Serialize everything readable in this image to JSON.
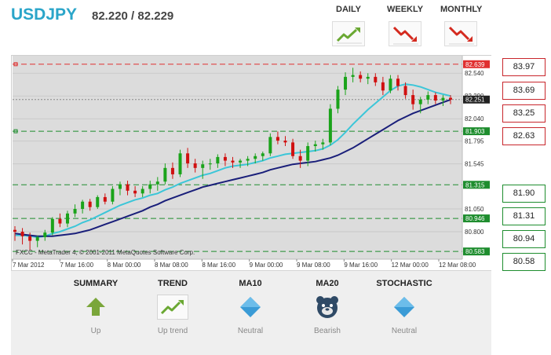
{
  "header": {
    "symbol": "USDJPY",
    "quote": "82.220 / 82.229",
    "timeframes": [
      {
        "label": "DAILY",
        "trend_icon": "trend-up-icon",
        "color": "#6aa832"
      },
      {
        "label": "WEEKLY",
        "trend_icon": "trend-down-icon",
        "color": "#d42a1f"
      },
      {
        "label": "MONTHLY",
        "trend_icon": "trend-down-icon",
        "color": "#d42a1f"
      }
    ]
  },
  "chart": {
    "watermark": "FXCC - MetaTrader 4, © 2001-2011 MetaQuotes Software Corp.",
    "x_labels": [
      "7 Mar 2012",
      "7 Mar 16:00",
      "8 Mar 00:00",
      "8 Mar 08:00",
      "8 Mar 16:00",
      "9 Mar 00:00",
      "9 Mar 08:00",
      "9 Mar 16:00",
      "12 Mar 00:00",
      "12 Mar 08:00"
    ],
    "y_ticks": [
      "82.540",
      "82.290",
      "82.040",
      "81.795",
      "81.545",
      "81.050",
      "80.800"
    ],
    "price_tags": [
      {
        "text": "82.639",
        "kind": "red-line",
        "color": "#e03030"
      },
      {
        "text": "82.251",
        "kind": "current",
        "color": "#222222"
      },
      {
        "text": "81.903",
        "kind": "green-line",
        "color": "#1e8d2e"
      },
      {
        "text": "81.315",
        "kind": "green-line",
        "color": "#1e8d2e"
      },
      {
        "text": "80.946",
        "kind": "green-line",
        "color": "#1e8d2e"
      },
      {
        "text": "80.583",
        "kind": "green-line",
        "color": "#1e8d2e"
      }
    ]
  },
  "chart_data": {
    "type": "line",
    "y_range": [
      80.55,
      82.68
    ],
    "candles": [
      [
        80.82,
        80.86,
        80.7,
        80.8
      ],
      [
        80.8,
        80.84,
        80.66,
        80.75
      ],
      [
        80.75,
        80.79,
        80.6,
        80.7
      ],
      [
        80.7,
        80.76,
        80.63,
        80.74
      ],
      [
        80.74,
        80.82,
        80.7,
        80.79
      ],
      [
        80.79,
        80.96,
        80.76,
        80.94
      ],
      [
        80.94,
        81.0,
        80.85,
        80.89
      ],
      [
        80.89,
        81.03,
        80.85,
        81.0
      ],
      [
        81.0,
        81.1,
        80.96,
        81.05
      ],
      [
        81.05,
        81.15,
        81.0,
        81.13
      ],
      [
        81.13,
        81.16,
        81.03,
        81.07
      ],
      [
        81.07,
        81.2,
        81.05,
        81.18
      ],
      [
        81.18,
        81.22,
        81.1,
        81.13
      ],
      [
        81.13,
        81.3,
        81.1,
        81.27
      ],
      [
        81.27,
        81.35,
        81.2,
        81.32
      ],
      [
        81.32,
        81.36,
        81.2,
        81.25
      ],
      [
        81.25,
        81.3,
        81.18,
        81.22
      ],
      [
        81.22,
        81.3,
        81.18,
        81.27
      ],
      [
        81.27,
        81.36,
        81.22,
        81.32
      ],
      [
        81.32,
        81.4,
        81.25,
        81.35
      ],
      [
        81.35,
        81.55,
        81.32,
        81.5
      ],
      [
        81.5,
        81.56,
        81.38,
        81.43
      ],
      [
        81.43,
        81.7,
        81.4,
        81.66
      ],
      [
        81.66,
        81.72,
        81.5,
        81.55
      ],
      [
        81.55,
        81.6,
        81.45,
        81.5
      ],
      [
        81.5,
        81.58,
        81.38,
        81.54
      ],
      [
        81.54,
        81.6,
        81.48,
        81.55
      ],
      [
        81.55,
        81.65,
        81.5,
        81.62
      ],
      [
        81.62,
        81.66,
        81.52,
        81.58
      ],
      [
        81.58,
        81.62,
        81.5,
        81.56
      ],
      [
        81.56,
        81.6,
        81.5,
        81.58
      ],
      [
        81.58,
        81.63,
        81.52,
        81.6
      ],
      [
        81.6,
        81.66,
        81.55,
        81.63
      ],
      [
        81.63,
        81.68,
        81.58,
        81.66
      ],
      [
        81.66,
        81.88,
        81.63,
        81.84
      ],
      [
        81.84,
        81.9,
        81.76,
        81.8
      ],
      [
        81.8,
        81.85,
        81.74,
        81.78
      ],
      [
        81.78,
        81.82,
        81.6,
        81.63
      ],
      [
        81.63,
        81.7,
        81.5,
        81.58
      ],
      [
        81.58,
        81.78,
        81.52,
        81.74
      ],
      [
        81.74,
        81.8,
        81.68,
        81.76
      ],
      [
        81.76,
        81.82,
        81.7,
        81.78
      ],
      [
        81.78,
        82.2,
        81.75,
        82.15
      ],
      [
        82.15,
        82.4,
        82.1,
        82.36
      ],
      [
        82.36,
        82.55,
        82.3,
        82.5
      ],
      [
        82.5,
        82.6,
        82.44,
        82.52
      ],
      [
        82.52,
        82.56,
        82.44,
        82.48
      ],
      [
        82.48,
        82.54,
        82.42,
        82.5
      ],
      [
        82.5,
        82.54,
        82.4,
        82.44
      ],
      [
        82.44,
        82.5,
        82.3,
        82.35
      ],
      [
        82.35,
        82.52,
        82.32,
        82.48
      ],
      [
        82.48,
        82.52,
        82.35,
        82.4
      ],
      [
        82.4,
        82.44,
        82.26,
        82.3
      ],
      [
        82.3,
        82.36,
        82.14,
        82.2
      ],
      [
        82.2,
        82.28,
        82.1,
        82.25
      ],
      [
        82.25,
        82.34,
        82.2,
        82.3
      ],
      [
        82.3,
        82.33,
        82.2,
        82.24
      ],
      [
        82.24,
        82.3,
        82.18,
        82.27
      ],
      [
        82.27,
        82.3,
        82.2,
        82.25
      ]
    ],
    "series": [
      {
        "name": "MA10",
        "color": "#3cc6d8",
        "values": [
          80.76,
          80.76,
          80.75,
          80.74,
          80.75,
          80.78,
          80.8,
          80.83,
          80.86,
          80.9,
          80.93,
          80.97,
          81.01,
          81.05,
          81.09,
          81.12,
          81.15,
          81.17,
          81.2,
          81.22,
          81.26,
          81.29,
          81.33,
          81.36,
          81.39,
          81.42,
          81.44,
          81.47,
          81.5,
          81.52,
          81.53,
          81.54,
          81.56,
          81.58,
          81.61,
          81.63,
          81.65,
          81.66,
          81.67,
          81.68,
          81.69,
          81.71,
          81.75,
          81.81,
          81.89,
          81.98,
          82.06,
          82.14,
          82.21,
          82.28,
          82.35,
          82.4,
          82.42,
          82.41,
          82.39,
          82.36,
          82.33,
          82.31,
          82.29
        ]
      },
      {
        "name": "MA20",
        "color": "#1a1f7a",
        "values": [
          80.78,
          80.77,
          80.76,
          80.75,
          80.75,
          80.75,
          80.76,
          80.77,
          80.78,
          80.8,
          80.82,
          80.85,
          80.88,
          80.91,
          80.94,
          80.97,
          81.0,
          81.03,
          81.07,
          81.1,
          81.14,
          81.17,
          81.2,
          81.23,
          81.26,
          81.29,
          81.31,
          81.33,
          81.35,
          81.37,
          81.39,
          81.41,
          81.43,
          81.45,
          81.48,
          81.5,
          81.52,
          81.54,
          81.55,
          81.56,
          81.57,
          81.59,
          81.61,
          81.64,
          81.68,
          81.72,
          81.77,
          81.82,
          81.87,
          81.92,
          81.97,
          82.02,
          82.06,
          82.1,
          82.13,
          82.16,
          82.19,
          82.22,
          82.25
        ]
      }
    ],
    "levels": [
      82.639,
      81.903,
      81.315,
      80.946,
      80.583
    ],
    "current": 82.251
  },
  "levels_right": [
    {
      "value": "83.97",
      "kind": "red"
    },
    {
      "value": "83.69",
      "kind": "red"
    },
    {
      "value": "83.25",
      "kind": "red"
    },
    {
      "value": "82.63",
      "kind": "red"
    },
    {
      "value": "81.90",
      "kind": "green"
    },
    {
      "value": "81.31",
      "kind": "green"
    },
    {
      "value": "80.94",
      "kind": "green"
    },
    {
      "value": "80.58",
      "kind": "green"
    }
  ],
  "indicators": [
    {
      "title": "SUMMARY",
      "status": "Up",
      "icon": "arrow-up-icon",
      "color": "#7aa63a"
    },
    {
      "title": "TREND",
      "status": "Up trend",
      "icon": "trend-up-icon",
      "color": "#6aa832"
    },
    {
      "title": "MA10",
      "status": "Neutral",
      "icon": "diamond-icon",
      "color": "#3a9bd6"
    },
    {
      "title": "MA20",
      "status": "Bearish",
      "icon": "bear-icon",
      "color": "#2f4a66"
    },
    {
      "title": "STOCHASTIC",
      "status": "Neutral",
      "icon": "diamond-icon",
      "color": "#3a9bd6"
    }
  ]
}
